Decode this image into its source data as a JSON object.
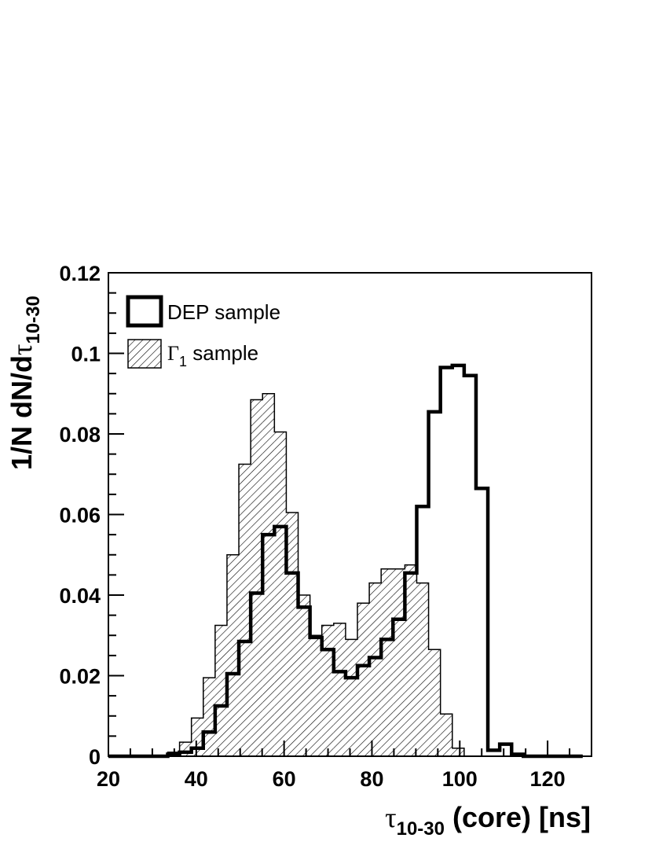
{
  "chart_data": {
    "type": "histogram",
    "xlabel": {
      "symbol": "τ",
      "sub": "10-30",
      "rest": " (core) [ns]"
    },
    "ylabel": {
      "pre": "1/N dN/d",
      "symbol": "τ",
      "sub": "10-30"
    },
    "xlim": [
      20,
      130
    ],
    "ylim": [
      0,
      0.12
    ],
    "x_ticks": [
      "20",
      "40",
      "60",
      "80",
      "100",
      "120"
    ],
    "y_ticks": [
      "0",
      "0.02",
      "0.04",
      "0.06",
      "0.08",
      "0.1",
      "0.12"
    ],
    "bin_edges": [
      20,
      22.7,
      25.4,
      28.1,
      30.8,
      33.5,
      36.2,
      38.9,
      41.6,
      44.3,
      47,
      49.7,
      52.4,
      55.1,
      57.8,
      60.5,
      63.2,
      65.9,
      68.6,
      71.3,
      74,
      76.7,
      79.4,
      82.1,
      84.8,
      87.5,
      90.2,
      92.9,
      95.6,
      98.3,
      101,
      103.7,
      106.4,
      109.1,
      111.8,
      114.5,
      117.2,
      119.9,
      122.6,
      125.3,
      128
    ],
    "legend_position": "top-left",
    "grid": false,
    "series": [
      {
        "name": "DEP sample",
        "style": "thick outline",
        "values": [
          0,
          0,
          0,
          0,
          0,
          0.0005,
          0.001,
          0.002,
          0.006,
          0.0125,
          0.0205,
          0.0285,
          0.0405,
          0.055,
          0.057,
          0.0455,
          0.037,
          0.0295,
          0.0265,
          0.021,
          0.0195,
          0.0225,
          0.0245,
          0.029,
          0.034,
          0.0455,
          0.062,
          0.0855,
          0.0965,
          0.097,
          0.0945,
          0.0665,
          0.0015,
          0.003,
          0.0005,
          0,
          0,
          0,
          0,
          0
        ]
      },
      {
        "name": "Γ1 sample",
        "name_symbol": "Γ",
        "name_sub": "1",
        "name_rest": " sample",
        "style": "hatched fill",
        "values": [
          0,
          0,
          0,
          0,
          0,
          0.001,
          0.0035,
          0.0095,
          0.0195,
          0.0325,
          0.05,
          0.0725,
          0.0885,
          0.09,
          0.0805,
          0.0605,
          0.04,
          0.03,
          0.0325,
          0.033,
          0.029,
          0.038,
          0.043,
          0.0465,
          0.0465,
          0.0475,
          0.043,
          0.0265,
          0.0105,
          0.002,
          0,
          0,
          0,
          0,
          0,
          0,
          0,
          0,
          0,
          0
        ]
      }
    ]
  }
}
